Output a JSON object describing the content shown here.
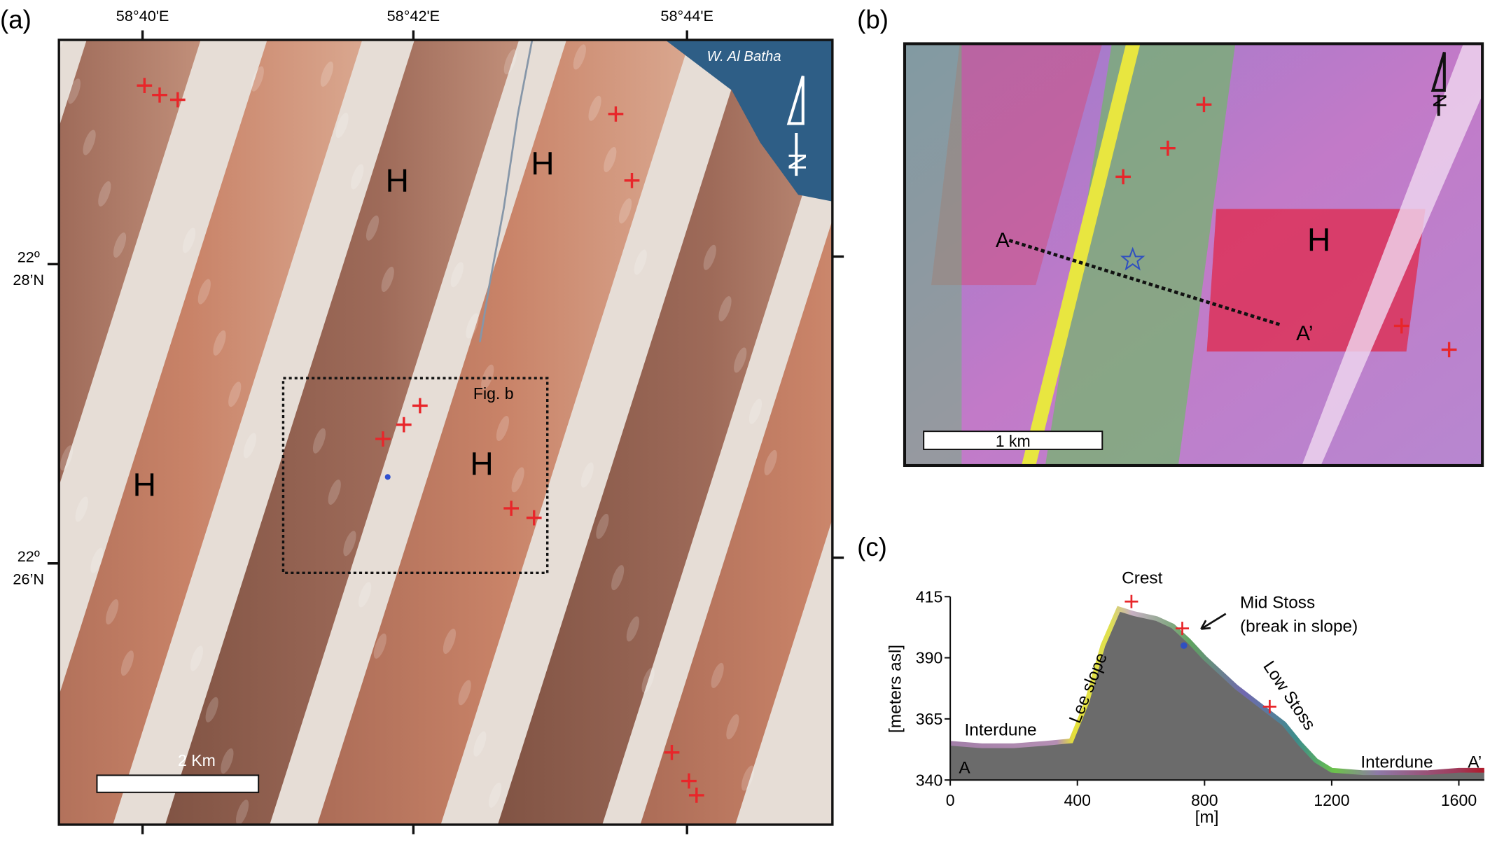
{
  "panel_a": {
    "label": "(a)",
    "lon_labels": [
      "58°40'E",
      "58°42'E",
      "58°44'E"
    ],
    "lat_labels": [
      [
        "22º",
        "28’N"
      ],
      [
        "22º",
        "26’N"
      ]
    ],
    "place": "W. Al Batha",
    "north": "N",
    "hollows": [
      "H",
      "H",
      "H",
      "H"
    ],
    "inset": "Fig. b",
    "scale": "2 Km"
  },
  "panel_b": {
    "label": "(b)",
    "north": "N",
    "hollow": "H",
    "start": "A",
    "end": "A’",
    "scale": "1 km"
  },
  "panel_c_label": "(c)",
  "chart_data": {
    "type": "area",
    "y_label": "[meters asl]",
    "x_label": "[m]",
    "x": [
      0,
      100,
      200,
      300,
      380,
      430,
      480,
      530,
      580,
      650,
      700,
      750,
      800,
      850,
      900,
      950,
      1000,
      1050,
      1100,
      1150,
      1200,
      1300,
      1400,
      1500,
      1600,
      1680
    ],
    "values": [
      355,
      354,
      354,
      355,
      356,
      372,
      395,
      410,
      408,
      406,
      403,
      397,
      390,
      384,
      378,
      373,
      368,
      363,
      355,
      348,
      344,
      343,
      343,
      343,
      344,
      344
    ],
    "xlim": [
      0,
      1680
    ],
    "ylim": [
      340,
      415
    ],
    "xticks": [
      0,
      400,
      800,
      1200,
      1600
    ],
    "yticks": [
      340,
      365,
      390,
      415
    ],
    "samples": [
      {
        "x": 570,
        "y": 413
      },
      {
        "x": 730,
        "y": 402
      },
      {
        "x": 1005,
        "y": 370
      }
    ],
    "star": {
      "x": 735,
      "y": 395
    },
    "annotations": {
      "crest": "Crest",
      "mid_stoss": [
        "Mid Stoss",
        "(break in slope)"
      ],
      "lee": "Lee slope",
      "low_stoss": "Low Stoss",
      "interdune": [
        "Interdune",
        "Interdune"
      ],
      "start": "A",
      "end": "A’"
    }
  }
}
